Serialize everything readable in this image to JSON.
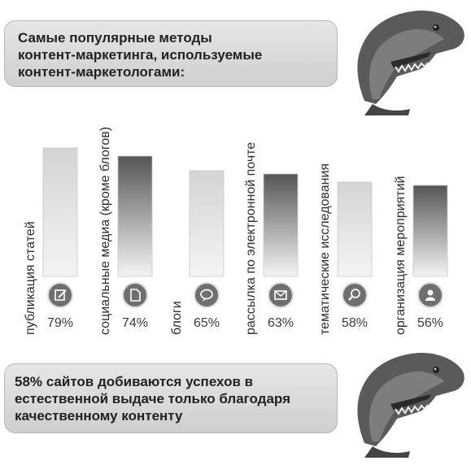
{
  "header": {
    "title_lines": [
      "Самые популярные методы",
      "контент-маркетинга, используемые",
      "контент-маркетологами:"
    ]
  },
  "footer": {
    "text_lines": [
      "58% сайтов добиваются успехов в",
      "естественной выдаче только благодаря",
      "качественному контенту"
    ]
  },
  "colors": {
    "bar_light_top": "#d4d4d4",
    "bar_dark_top": "#555555",
    "bar_bottom": "#f4f4f4",
    "icon_circle": "#6f6f6f",
    "text": "#3a3a3a"
  },
  "chart_data": {
    "type": "bar",
    "categories": [
      "публикация статей",
      "социальные медиа (кроме блогов)",
      "блоги",
      "рассылка по электронной почте",
      "тематические исследования",
      "организация мероприятий"
    ],
    "values": [
      79,
      74,
      65,
      63,
      58,
      56
    ],
    "value_labels": [
      "79%",
      "74%",
      "65%",
      "63%",
      "58%",
      "56%"
    ],
    "icons": [
      "edit-icon",
      "document-icon",
      "speech-bubble-icon",
      "envelope-icon",
      "magnifier-icon",
      "person-icon"
    ],
    "bar_styles": [
      "light",
      "dark",
      "light",
      "dark",
      "light",
      "dark"
    ],
    "ylim": [
      0,
      100
    ]
  }
}
